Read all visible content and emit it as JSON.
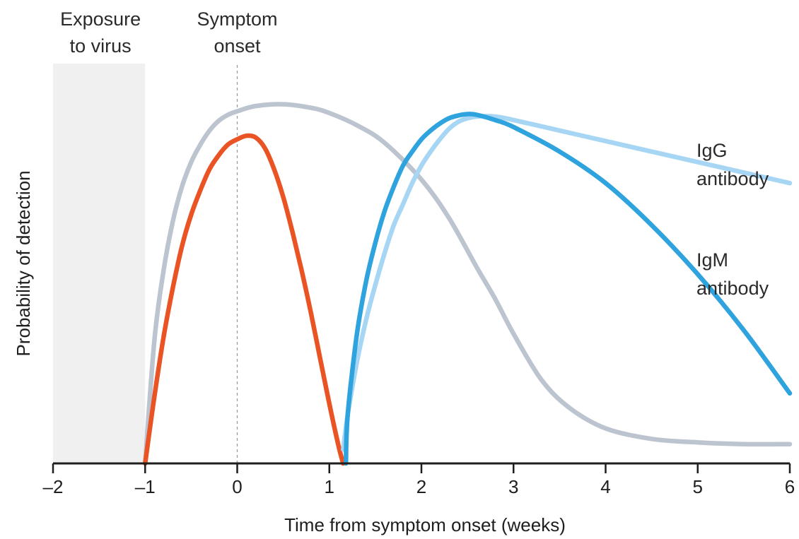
{
  "chart_data": {
    "type": "line",
    "title": "",
    "xlabel": "Time from symptom onset (weeks)",
    "ylabel": "Probability of detection",
    "xlim": [
      -2,
      6
    ],
    "ylim": [
      0,
      1
    ],
    "x_ticks": [
      "–2",
      "–1",
      "0",
      "1",
      "2",
      "3",
      "4",
      "5",
      "6"
    ],
    "grid": false,
    "annotations": [
      {
        "id": "exposure",
        "lines": [
          "Exposure",
          "to virus"
        ],
        "x_range": [
          -2,
          -1
        ]
      },
      {
        "id": "onset",
        "lines": [
          "Symptom",
          "onset"
        ],
        "x": 0
      }
    ],
    "series": [
      {
        "id": "gray",
        "color": "#bcc4cf",
        "x": [
          -1.0,
          -0.9,
          -0.8,
          -0.7,
          -0.6,
          -0.5,
          -0.4,
          -0.3,
          -0.2,
          -0.1,
          0.0,
          0.2,
          0.5,
          0.8,
          1.0,
          1.3,
          1.6,
          2.0,
          2.3,
          2.6,
          2.8,
          3.0,
          3.3,
          3.6,
          4.0,
          4.5,
          5.0,
          5.5,
          6.0
        ],
        "y": [
          0.0,
          0.35,
          0.55,
          0.69,
          0.79,
          0.86,
          0.91,
          0.95,
          0.978,
          0.995,
          1.005,
          1.02,
          1.025,
          1.015,
          1.0,
          0.965,
          0.915,
          0.81,
          0.7,
          0.56,
          0.47,
          0.37,
          0.24,
          0.16,
          0.1,
          0.07,
          0.06,
          0.055,
          0.055
        ]
      },
      {
        "id": "orange",
        "color": "#ea5323",
        "x": [
          -1.0,
          -0.9,
          -0.8,
          -0.7,
          -0.6,
          -0.5,
          -0.4,
          -0.3,
          -0.2,
          -0.1,
          0.0,
          0.1,
          0.2,
          0.3,
          0.4,
          0.5,
          0.6,
          0.7,
          0.8,
          0.9,
          1.0,
          1.1,
          1.15
        ],
        "y": [
          0.0,
          0.19,
          0.36,
          0.5,
          0.62,
          0.71,
          0.78,
          0.84,
          0.88,
          0.91,
          0.925,
          0.935,
          0.93,
          0.9,
          0.84,
          0.76,
          0.66,
          0.55,
          0.43,
          0.3,
          0.17,
          0.05,
          0.0
        ]
      },
      {
        "id": "igg",
        "name": "IgG antibody",
        "label_lines": [
          "IgG",
          "antibody"
        ],
        "color": "#a6d6f3",
        "x": [
          1.15,
          1.2,
          1.3,
          1.4,
          1.5,
          1.6,
          1.7,
          1.8,
          1.9,
          2.0,
          2.1,
          2.2,
          2.3,
          2.4,
          2.5,
          2.6,
          2.8,
          3.0,
          3.5,
          4.0,
          4.5,
          5.0,
          5.5,
          6.0
        ],
        "y": [
          0.04,
          0.14,
          0.29,
          0.41,
          0.51,
          0.6,
          0.68,
          0.74,
          0.8,
          0.85,
          0.89,
          0.925,
          0.955,
          0.975,
          0.985,
          0.99,
          0.99,
          0.98,
          0.95,
          0.92,
          0.89,
          0.86,
          0.83,
          0.8
        ]
      },
      {
        "id": "igm",
        "name": "IgM antibody",
        "label_lines": [
          "IgM",
          "antibody"
        ],
        "color": "#2fa3de",
        "x": [
          1.18,
          1.2,
          1.3,
          1.4,
          1.5,
          1.6,
          1.7,
          1.8,
          1.9,
          2.0,
          2.1,
          2.2,
          2.3,
          2.4,
          2.5,
          2.6,
          2.8,
          3.0,
          3.5,
          4.0,
          4.5,
          5.0,
          5.5,
          6.0
        ],
        "y": [
          0.0,
          0.14,
          0.37,
          0.52,
          0.63,
          0.72,
          0.79,
          0.85,
          0.89,
          0.925,
          0.95,
          0.97,
          0.985,
          0.993,
          0.997,
          0.995,
          0.98,
          0.96,
          0.89,
          0.8,
          0.68,
          0.54,
          0.38,
          0.2
        ]
      }
    ]
  }
}
